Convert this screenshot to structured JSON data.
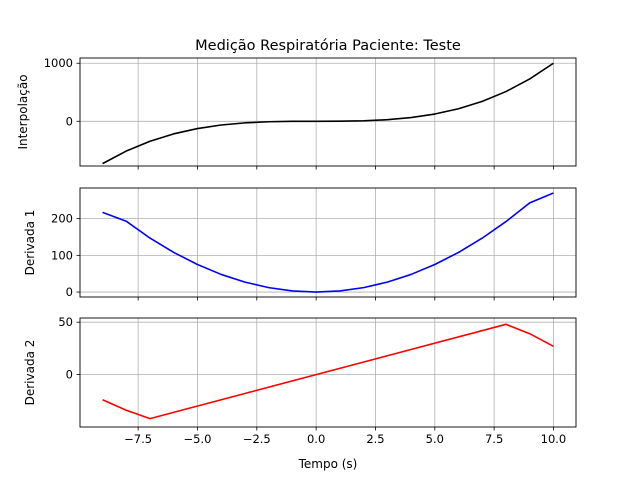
{
  "chart_data": [
    {
      "type": "line",
      "title": "Medição Respiratória Paciente: Teste",
      "ylabel": "Interpolação",
      "xlim": [
        -9.95,
        10.95
      ],
      "ylim": [
        -770,
        1090
      ],
      "yticks": [
        0,
        1000
      ],
      "grid": true,
      "series": [
        {
          "color": "#000000",
          "x": [
            -9,
            -8,
            -7,
            -6,
            -5,
            -4,
            -3,
            -2,
            -1,
            0,
            1,
            2,
            3,
            4,
            5,
            6,
            7,
            8,
            9,
            10
          ],
          "values": [
            -729,
            -512,
            -343,
            -216,
            -125,
            -64,
            -27,
            -8,
            -1,
            0,
            1,
            8,
            27,
            64,
            125,
            216,
            343,
            512,
            729,
            1000
          ]
        }
      ]
    },
    {
      "type": "line",
      "ylabel": "Derivada 1",
      "xlim": [
        -9.95,
        10.95
      ],
      "ylim": [
        -13.5,
        283.5
      ],
      "yticks": [
        0,
        100,
        200
      ],
      "grid": true,
      "series": [
        {
          "color": "#0000ff",
          "x": [
            -9,
            -8,
            -7,
            -6,
            -5,
            -4,
            -3,
            -2,
            -1,
            0,
            1,
            2,
            3,
            4,
            5,
            6,
            7,
            8,
            9,
            10
          ],
          "values": [
            217,
            193,
            147,
            108,
            75,
            48,
            27,
            12,
            3,
            0,
            3,
            12,
            27,
            48,
            75,
            108,
            147,
            192,
            243,
            270
          ]
        }
      ]
    },
    {
      "type": "line",
      "xlabel": "Tempo (s)",
      "ylabel": "Derivada 2",
      "xlim": [
        -9.95,
        10.95
      ],
      "ylim": [
        -50,
        54
      ],
      "yticks": [
        0,
        50
      ],
      "xticks": [
        "−7.5",
        "−5.0",
        "−2.5",
        "0.0",
        "2.5",
        "5.0",
        "7.5",
        "10.0"
      ],
      "xtick_values": [
        -7.5,
        -5,
        -2.5,
        0,
        2.5,
        5,
        7.5,
        10
      ],
      "grid": true,
      "series": [
        {
          "color": "#ff0000",
          "x": [
            -9,
            -8,
            -7,
            8,
            9,
            10
          ],
          "values": [
            -24,
            -34,
            -42,
            48,
            39,
            27
          ]
        }
      ]
    }
  ]
}
